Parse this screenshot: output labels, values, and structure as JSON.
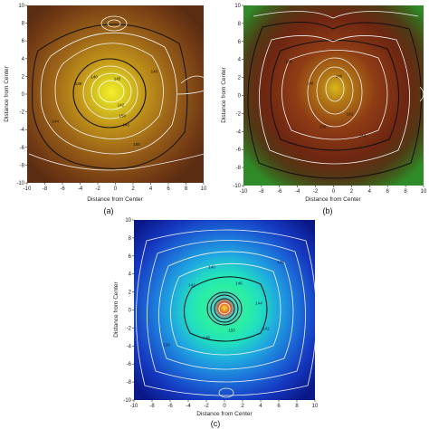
{
  "chart_data": [
    {
      "type": "contour",
      "panel": "(a)",
      "xlabel": "Distance from Center",
      "ylabel": "Distance from Center",
      "xlim": [
        -10,
        10
      ],
      "ylim": [
        -10,
        10
      ],
      "xticks": [
        -10,
        -8,
        -6,
        -4,
        -2,
        0,
        2,
        4,
        6,
        8,
        10
      ],
      "yticks": [
        -10,
        -8,
        -6,
        -4,
        -2,
        0,
        2,
        4,
        6,
        8,
        10
      ],
      "colormap": [
        "#5e2e13",
        "#8a4a16",
        "#b07a18",
        "#d4b41c",
        "#e8e21e"
      ],
      "peak": [
        0,
        0.4
      ],
      "contour_labels": [
        {
          "x": 0.2,
          "y": 1.6,
          "text": "145"
        },
        {
          "x": 0.6,
          "y": -1.4,
          "text": "142"
        },
        {
          "x": 0.8,
          "y": -2.6,
          "text": "150"
        },
        {
          "x": 1.2,
          "y": -3.6,
          "text": "146"
        },
        {
          "x": -2.4,
          "y": 1.8,
          "text": "140"
        },
        {
          "x": -4.2,
          "y": 1.0,
          "text": "138"
        },
        {
          "x": 2.4,
          "y": -5.8,
          "text": "150"
        },
        {
          "x": -6.8,
          "y": -3.2,
          "text": "144"
        },
        {
          "x": 4.4,
          "y": 2.4,
          "text": "140"
        }
      ]
    },
    {
      "type": "contour",
      "panel": "(b)",
      "xlabel": "Distance from Center",
      "ylabel": "Distance from Center",
      "xlim": [
        -10,
        10
      ],
      "ylim": [
        -10,
        10
      ],
      "xticks": [
        -10,
        -8,
        -6,
        -4,
        -2,
        0,
        2,
        4,
        6,
        8,
        10
      ],
      "yticks": [
        -10,
        -8,
        -6,
        -4,
        -2,
        0,
        2,
        4,
        6,
        8,
        10
      ],
      "colormap": [
        "#2f7a22",
        "#5b5f1c",
        "#7a2e14",
        "#9a3a12",
        "#c9a41c"
      ],
      "peak": [
        0.2,
        0.8
      ],
      "contour_labels": [
        {
          "x": 0.6,
          "y": 2.0,
          "text": "146"
        },
        {
          "x": -2.6,
          "y": 1.2,
          "text": "140"
        },
        {
          "x": 1.8,
          "y": -2.2,
          "text": "142"
        },
        {
          "x": -1.2,
          "y": -3.6,
          "text": "150"
        },
        {
          "x": 3.2,
          "y": -4.6,
          "text": "144"
        },
        {
          "x": -5.0,
          "y": 3.6,
          "text": "138"
        }
      ]
    },
    {
      "type": "contour",
      "panel": "(c)",
      "xlabel": "Distance from Center",
      "ylabel": "Distance from Center",
      "xlim": [
        -10,
        10
      ],
      "ylim": [
        -10,
        10
      ],
      "xticks": [
        -10,
        -8,
        -6,
        -4,
        -2,
        0,
        2,
        4,
        6,
        8,
        10
      ],
      "yticks": [
        -10,
        -8,
        -6,
        -4,
        -2,
        0,
        2,
        4,
        6,
        8,
        10
      ],
      "colormap": [
        "#0a1a8c",
        "#1a3fd0",
        "#1f86d8",
        "#22c4c4",
        "#3ef0a8",
        "#a8f048",
        "#f6e63a"
      ],
      "peak": [
        0,
        0.2
      ],
      "contour_labels": [
        {
          "x": 1.6,
          "y": 2.8,
          "text": "146"
        },
        {
          "x": -1.4,
          "y": 4.6,
          "text": "140"
        },
        {
          "x": -3.6,
          "y": 2.6,
          "text": "142"
        },
        {
          "x": 3.8,
          "y": 0.6,
          "text": "144"
        },
        {
          "x": 0.8,
          "y": -2.4,
          "text": "150"
        },
        {
          "x": -2.0,
          "y": -3.2,
          "text": "148"
        },
        {
          "x": 4.6,
          "y": -2.2,
          "text": "142"
        },
        {
          "x": -6.4,
          "y": -4.0,
          "text": "138"
        },
        {
          "x": 6.2,
          "y": 5.2,
          "text": "136"
        }
      ]
    }
  ]
}
